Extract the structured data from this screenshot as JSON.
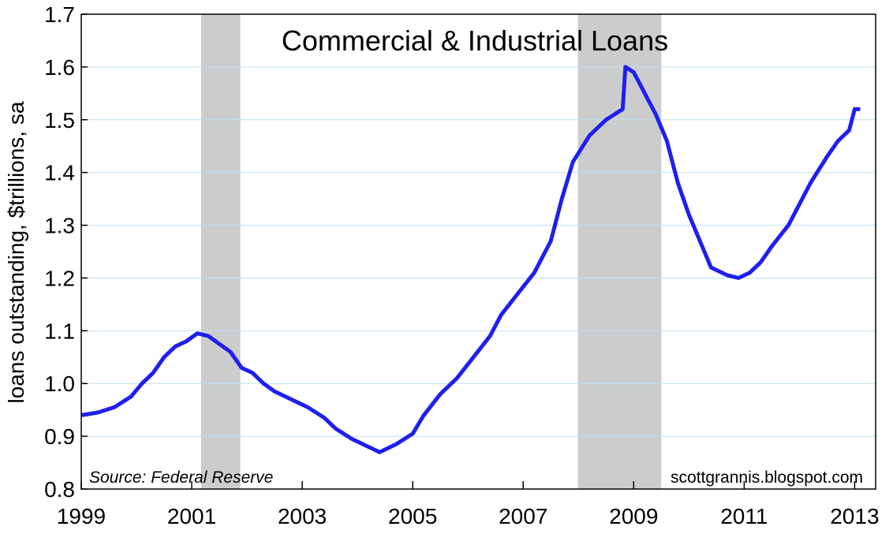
{
  "chart_data": {
    "type": "line",
    "title": "Commercial & Industrial Loans",
    "y_label": "loans outstanding, $trillions, sa",
    "source": "Source:  Federal Reserve",
    "credit": "scottgrannis.blogspot.com",
    "x": [
      1999.0,
      1999.3,
      1999.6,
      1999.9,
      2000.1,
      2000.3,
      2000.5,
      2000.7,
      2000.9,
      2001.1,
      2001.3,
      2001.5,
      2001.7,
      2001.9,
      2002.1,
      2002.3,
      2002.5,
      2002.8,
      2003.1,
      2003.4,
      2003.6,
      2003.9,
      2004.2,
      2004.4,
      2004.7,
      2005.0,
      2005.2,
      2005.5,
      2005.8,
      2006.1,
      2006.4,
      2006.6,
      2006.9,
      2007.2,
      2007.5,
      2007.7,
      2007.9,
      2008.2,
      2008.5,
      2008.8,
      2008.85,
      2009.0,
      2009.2,
      2009.4,
      2009.6,
      2009.8,
      2010.0,
      2010.2,
      2010.4,
      2010.7,
      2010.9,
      2011.1,
      2011.3,
      2011.5,
      2011.8,
      2012.0,
      2012.2,
      2012.5,
      2012.7,
      2012.9,
      2013.0,
      2013.1
    ],
    "series": [
      {
        "color": "#1f1fef",
        "values": [
          0.94,
          0.945,
          0.955,
          0.975,
          1.0,
          1.02,
          1.05,
          1.07,
          1.08,
          1.095,
          1.09,
          1.075,
          1.06,
          1.03,
          1.02,
          1.0,
          0.985,
          0.97,
          0.955,
          0.935,
          0.915,
          0.895,
          0.88,
          0.87,
          0.885,
          0.905,
          0.94,
          0.98,
          1.01,
          1.05,
          1.09,
          1.13,
          1.17,
          1.21,
          1.27,
          1.35,
          1.42,
          1.47,
          1.5,
          1.52,
          1.6,
          1.59,
          1.55,
          1.51,
          1.46,
          1.38,
          1.32,
          1.27,
          1.22,
          1.205,
          1.2,
          1.21,
          1.23,
          1.26,
          1.3,
          1.34,
          1.38,
          1.43,
          1.46,
          1.48,
          1.52,
          1.52
        ]
      }
    ],
    "shaded_regions": [
      [
        2001.17,
        2001.88
      ],
      [
        2007.99,
        2009.5
      ]
    ],
    "xlim": [
      1999,
      2013.38
    ],
    "xticks": [
      1999,
      2001,
      2003,
      2005,
      2007,
      2009,
      2011,
      2013
    ],
    "ylim": [
      0.8,
      1.7
    ],
    "yticks": [
      0.8,
      0.9,
      {
        "value": 1,
        "label": "1.0"
      },
      1.1,
      1.2,
      1.3,
      1.4,
      1.5,
      1.6,
      1.7
    ],
    "grid": true
  }
}
